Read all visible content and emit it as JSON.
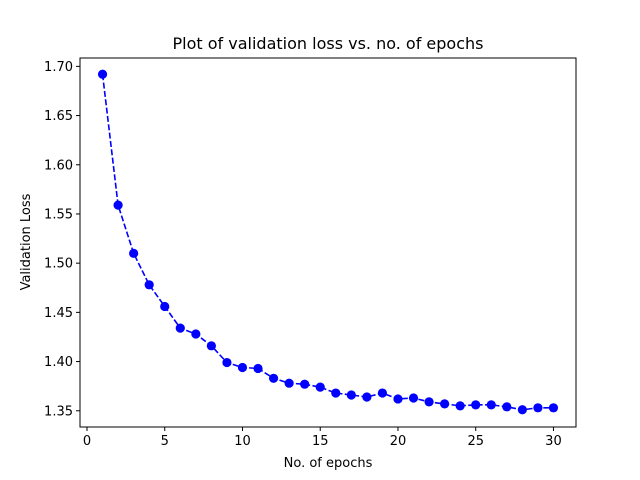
{
  "chart_data": {
    "type": "line",
    "title": "Plot of validation loss vs. no. of epochs",
    "xlabel": "No. of epochs",
    "ylabel": "Validation Loss",
    "xlim": [
      -0.45,
      31.45
    ],
    "ylim": [
      1.3335,
      1.7085
    ],
    "xticks": [
      0,
      5,
      10,
      15,
      20,
      25,
      30
    ],
    "xtick_labels": [
      "0",
      "5",
      "10",
      "15",
      "20",
      "25",
      "30"
    ],
    "yticks": [
      1.35,
      1.4,
      1.45,
      1.5,
      1.55,
      1.6,
      1.65,
      1.7
    ],
    "ytick_labels": [
      "1.35",
      "1.40",
      "1.45",
      "1.50",
      "1.55",
      "1.60",
      "1.65",
      "1.70"
    ],
    "grid": false,
    "series": [
      {
        "name": "Validation Loss",
        "color": "#0000ff",
        "line_style": "dashed",
        "marker": "circle",
        "x": [
          1,
          2,
          3,
          4,
          5,
          6,
          7,
          8,
          9,
          10,
          11,
          12,
          13,
          14,
          15,
          16,
          17,
          18,
          19,
          20,
          21,
          22,
          23,
          24,
          25,
          26,
          27,
          28,
          29,
          30
        ],
        "values": [
          1.692,
          1.559,
          1.51,
          1.478,
          1.456,
          1.434,
          1.428,
          1.416,
          1.399,
          1.394,
          1.393,
          1.383,
          1.378,
          1.377,
          1.374,
          1.368,
          1.366,
          1.364,
          1.368,
          1.362,
          1.363,
          1.359,
          1.357,
          1.355,
          1.356,
          1.356,
          1.354,
          1.351,
          1.353,
          1.353
        ]
      }
    ]
  }
}
